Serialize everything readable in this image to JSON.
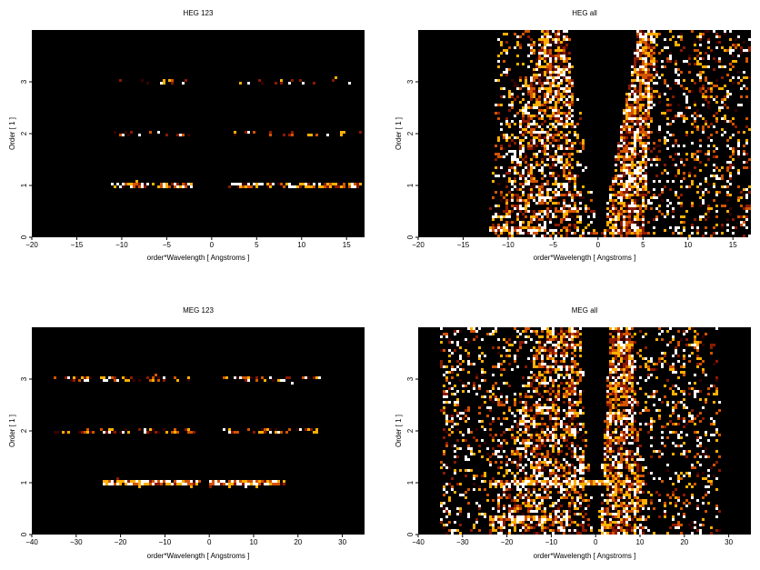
{
  "chart_data": [
    {
      "type": "heatmap",
      "title": "HEG 123",
      "xlabel": "order*Wavelength [ Angstroms ]",
      "ylabel": "Order [ 1 ]",
      "xlim": [
        -20,
        17
      ],
      "ylim": [
        0,
        4
      ],
      "xticks": [
        -20,
        -15,
        -10,
        -5,
        0,
        5,
        10,
        15
      ],
      "yticks": [
        0,
        1,
        2,
        3
      ],
      "background": "#000000",
      "colormap": [
        "#3a0000",
        "#8b1a00",
        "#d35400",
        "#ffb000",
        "#ffffff"
      ],
      "bands": [
        {
          "order": 1,
          "x_ranges": [
            [
              -11,
              -2
            ],
            [
              2,
              17
            ]
          ],
          "density": 0.55
        },
        {
          "order": 2,
          "x_ranges": [
            [
              -11,
              -2
            ],
            [
              2,
              17
            ]
          ],
          "density": 0.12
        },
        {
          "order": 3,
          "x_ranges": [
            [
              -11,
              -3
            ],
            [
              3,
              16
            ]
          ],
          "density": 0.1
        }
      ],
      "wedges": []
    },
    {
      "type": "heatmap",
      "title": "HEG all",
      "xlabel": "order*Wavelength [ Angstroms ]",
      "ylabel": "Order [ 1 ]",
      "xlim": [
        -20,
        17
      ],
      "ylim": [
        0,
        4
      ],
      "xticks": [
        -20,
        -15,
        -10,
        -5,
        0,
        5,
        10,
        15
      ],
      "yticks": [
        0,
        1,
        2,
        3
      ],
      "background": "#000000",
      "colormap": [
        "#3a0000",
        "#8b1a00",
        "#d35400",
        "#ffb000",
        "#ffffff"
      ],
      "scatter_region": {
        "x_at_bottom": [
          -12,
          17
        ],
        "x_at_top": [
          -11,
          17
        ],
        "density": 0.45
      },
      "gap": {
        "x_at_bottom": [
          0,
          0.5
        ],
        "x_at_top": [
          -3.3,
          4.5
        ]
      },
      "wedges": [
        {
          "x_at_bottom": [
            -12,
            -2
          ],
          "x_at_top": [
            -6,
            -3.3
          ],
          "density": 0.8
        },
        {
          "x_at_bottom": [
            0.5,
            5
          ],
          "x_at_top": [
            4.5,
            6.5
          ],
          "density": 0.85
        }
      ],
      "bands": [
        {
          "order": 0.15,
          "x_ranges": [
            [
              -12,
              -6
            ],
            [
              1,
              5
            ]
          ],
          "density": 0.9
        }
      ]
    },
    {
      "type": "heatmap",
      "title": "MEG 123",
      "xlabel": "order*Wavelength [ Angstroms ]",
      "ylabel": "Order [ 1 ]",
      "xlim": [
        -40,
        35
      ],
      "ylim": [
        0,
        4
      ],
      "xticks": [
        -40,
        -30,
        -20,
        -10,
        0,
        10,
        20,
        30
      ],
      "yticks": [
        0,
        1,
        2,
        3
      ],
      "background": "#000000",
      "colormap": [
        "#3a0000",
        "#8b1a00",
        "#d35400",
        "#ffb000",
        "#ffffff"
      ],
      "bands": [
        {
          "order": 1,
          "x_ranges": [
            [
              -24,
              -2
            ],
            [
              0,
              17
            ]
          ],
          "density": 0.75
        },
        {
          "order": 2,
          "x_ranges": [
            [
              -35,
              -3
            ],
            [
              3,
              25
            ]
          ],
          "density": 0.12
        },
        {
          "order": 3,
          "x_ranges": [
            [
              -35,
              -4
            ],
            [
              3,
              25
            ]
          ],
          "density": 0.12
        }
      ],
      "wedges": []
    },
    {
      "type": "heatmap",
      "title": "MEG all",
      "xlabel": "order*Wavelength [ Angstroms ]",
      "ylabel": "Order [ 1 ]",
      "xlim": [
        -40,
        35
      ],
      "ylim": [
        0,
        4
      ],
      "xticks": [
        -40,
        -30,
        -20,
        -10,
        0,
        10,
        20,
        30
      ],
      "yticks": [
        0,
        1,
        2,
        3
      ],
      "background": "#000000",
      "colormap": [
        "#3a0000",
        "#8b1a00",
        "#d35400",
        "#ffb000",
        "#ffffff"
      ],
      "scatter_region": {
        "x_at_bottom": [
          -35,
          28
        ],
        "x_at_top": [
          -35,
          28
        ],
        "density": 0.45
      },
      "gap": {
        "x_at_bottom": [
          -0.5,
          0.5
        ],
        "x_at_top": [
          -3.5,
          3.5
        ]
      },
      "wedges": [
        {
          "x_at_bottom": [
            -24,
            -2
          ],
          "x_at_top": [
            -12,
            -3.5
          ],
          "density": 0.8
        },
        {
          "x_at_bottom": [
            1,
            11
          ],
          "x_at_top": [
            3.5,
            8
          ],
          "density": 0.8
        }
      ],
      "bands": [
        {
          "order": 1,
          "x_ranges": [
            [
              -24,
              11
            ]
          ],
          "density": 0.9
        },
        {
          "order": 0.3,
          "x_ranges": [
            [
              -24,
              -5
            ]
          ],
          "density": 0.9
        }
      ]
    }
  ]
}
